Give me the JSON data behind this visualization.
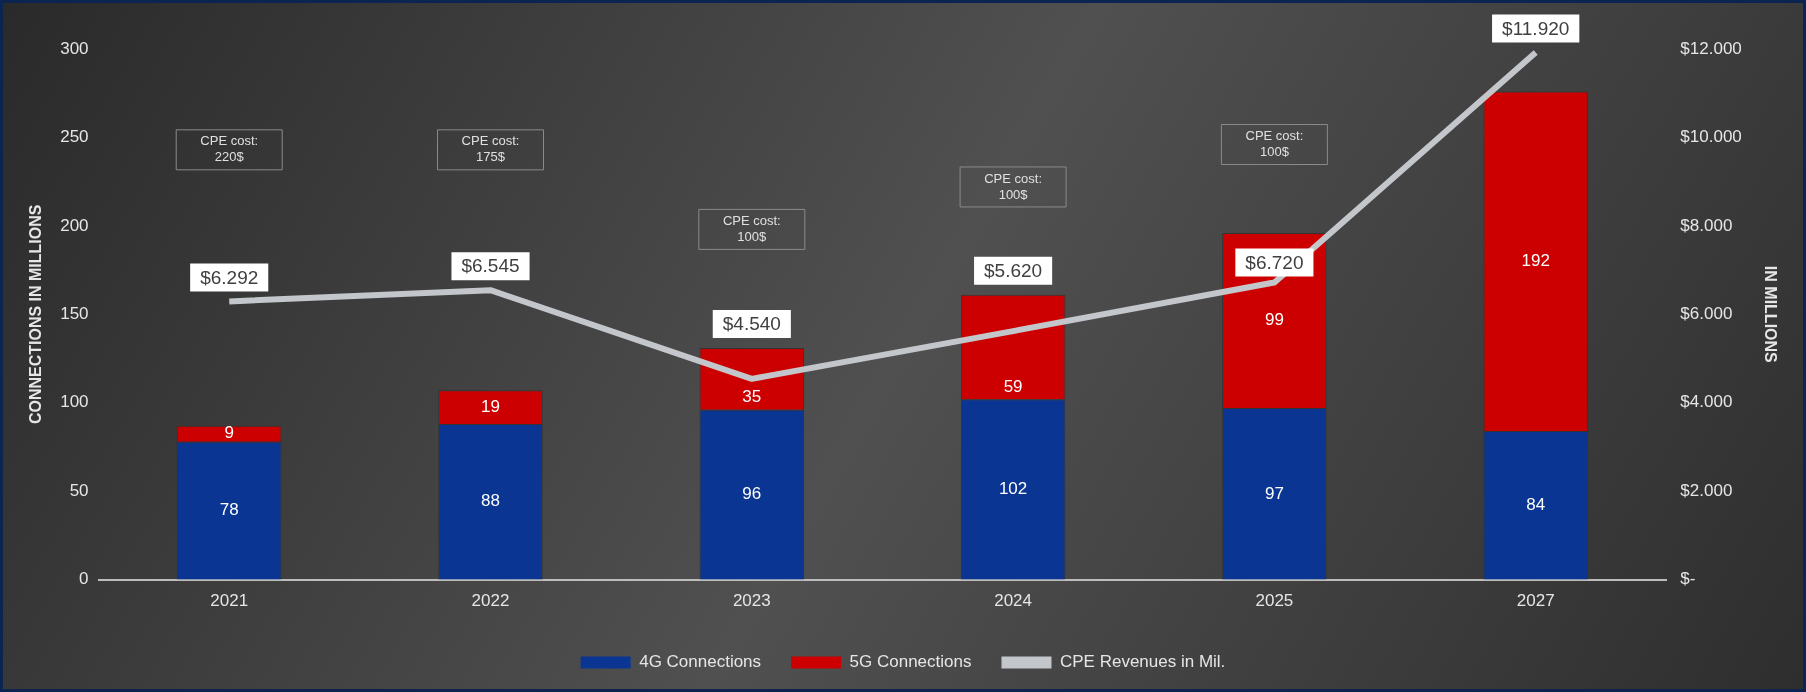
{
  "chart_data": {
    "type": "bar",
    "stacked": true,
    "categories": [
      "2021",
      "2022",
      "2023",
      "2024",
      "2025",
      "2027"
    ],
    "ylabel": "CONNECTIONS IN MILLIONS",
    "y2label": "IN MILLIONS",
    "ylim": [
      0,
      300
    ],
    "yticks": [
      0,
      50,
      100,
      150,
      200,
      250,
      300
    ],
    "y2lim": [
      0,
      12000
    ],
    "y2ticks": [
      {
        "value": 0,
        "label": "$-"
      },
      {
        "value": 2000,
        "label": "$2.000"
      },
      {
        "value": 4000,
        "label": "$4.000"
      },
      {
        "value": 6000,
        "label": "$6.000"
      },
      {
        "value": 8000,
        "label": "$8.000"
      },
      {
        "value": 10000,
        "label": "$10.000"
      },
      {
        "value": 12000,
        "label": "$12.000"
      }
    ],
    "series": [
      {
        "name": "4G Connections",
        "color": "#0a3592",
        "values": [
          78,
          88,
          96,
          102,
          97,
          84
        ]
      },
      {
        "name": "5G Connections",
        "color": "#cc0000",
        "values": [
          9,
          19,
          35,
          59,
          99,
          192
        ]
      },
      {
        "name": "CPE Revenues in Mil.",
        "type": "line",
        "axis": "y2",
        "color": "#c3c6ca",
        "values": [
          6292,
          6545,
          4540,
          5620,
          6720,
          11920
        ],
        "value_labels": [
          "$6.292",
          "$6.545",
          "$4.540",
          "$5.620",
          "$6.720",
          "$11.920"
        ]
      }
    ],
    "data_labels": true,
    "grid": false,
    "legend": "bottom",
    "annotations": [
      "CPE cost:\n220$",
      "CPE cost:\n175$",
      "CPE cost:\n100$",
      "CPE cost:\n100$",
      "CPE cost:\n100$"
    ]
  }
}
